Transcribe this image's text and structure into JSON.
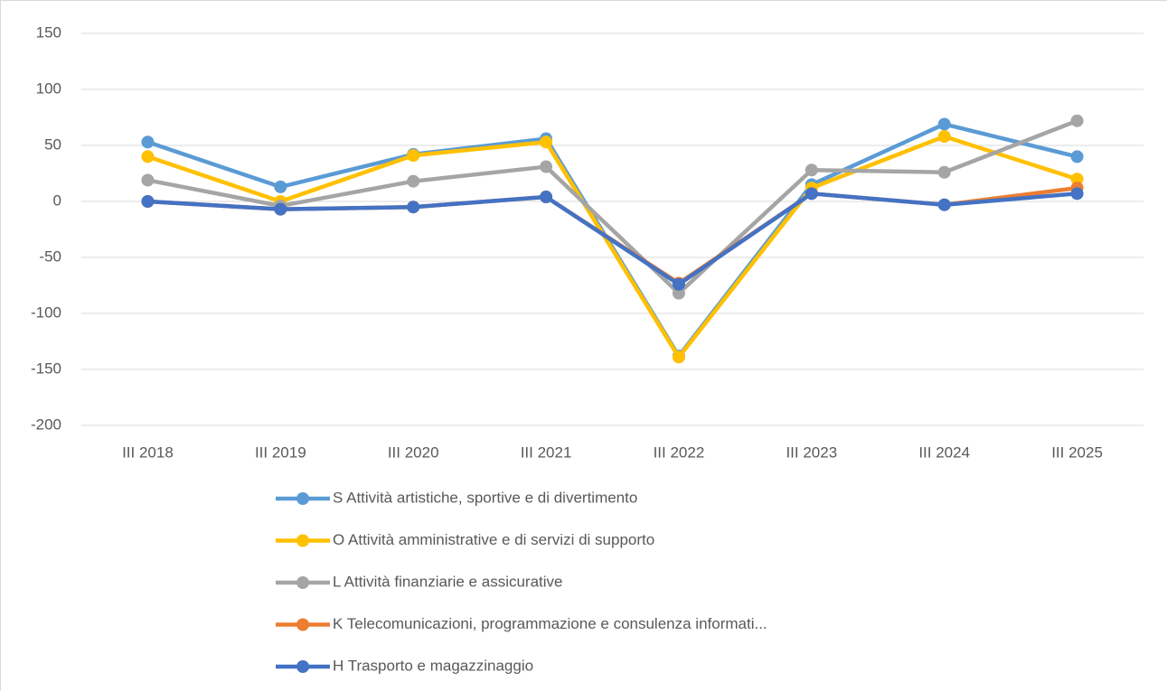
{
  "chart_data": {
    "type": "line",
    "categories": [
      "III 2018",
      "III 2019",
      "III 2020",
      "III 2021",
      "III 2022",
      "III 2023",
      "III 2024",
      "III 2025"
    ],
    "series": [
      {
        "name": "S Attività artistiche, sportive e di divertimento",
        "color": "#5b9bd5",
        "values": [
          53,
          13,
          42,
          56,
          -138,
          15,
          69,
          40
        ]
      },
      {
        "name": "O Attività amministrative e di servizi di supporto",
        "color": "#ffc000",
        "values": [
          40,
          0,
          41,
          53,
          -139,
          12,
          58,
          20
        ]
      },
      {
        "name": "L Attività finanziarie e assicurative",
        "color": "#a5a5a5",
        "values": [
          19,
          -4,
          18,
          31,
          -82,
          28,
          26,
          72
        ]
      },
      {
        "name": "K Telecomunicazioni, programmazione e consulenza informati...",
        "color": "#ed7d31",
        "values": [
          0,
          -7,
          -5,
          4,
          -73,
          7,
          -3,
          12
        ]
      },
      {
        "name": "H Trasporto e magazzinaggio",
        "color": "#4472c4",
        "values": [
          0,
          -7,
          -5,
          4,
          -74,
          7,
          -3,
          7
        ]
      }
    ],
    "ylim": [
      -200,
      150
    ],
    "yticks": [
      150,
      100,
      50,
      0,
      -50,
      -100,
      -150,
      -200
    ],
    "grid": true,
    "legend": "bottom"
  }
}
